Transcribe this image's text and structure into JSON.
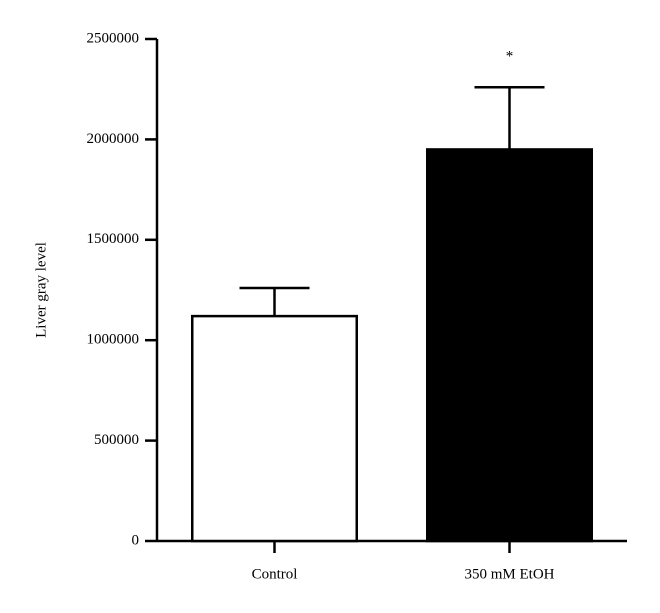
{
  "chart_data": {
    "type": "bar",
    "categories": [
      "Control",
      "350 mM EtOH"
    ],
    "values": [
      1120000,
      1950000
    ],
    "errors": [
      140000,
      310000
    ],
    "colors": [
      "#ffffff",
      "#000000"
    ],
    "ylabel": "Liver gray level",
    "ylim": [
      0,
      2500000
    ],
    "yticks": [
      0,
      500000,
      1000000,
      1500000,
      2000000,
      2500000
    ],
    "annotations": [
      {
        "text": "*",
        "category": "350 mM EtOH"
      }
    ]
  }
}
